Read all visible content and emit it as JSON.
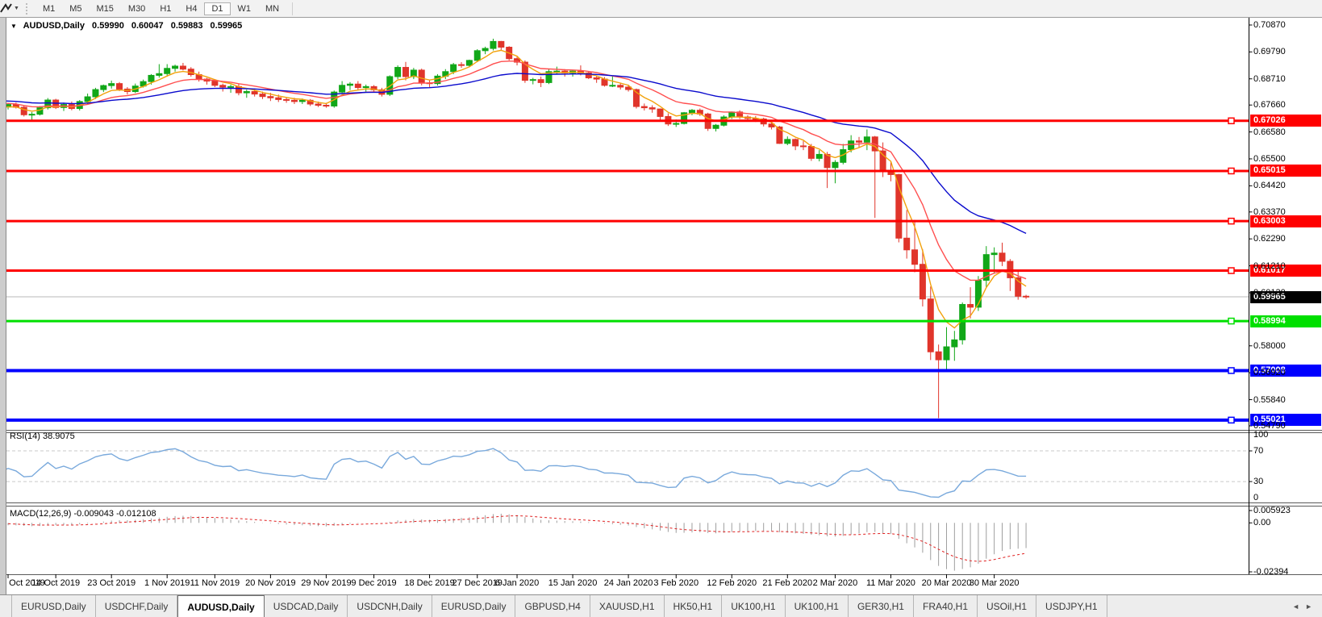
{
  "toolbar": {
    "timeframes": [
      "M1",
      "M5",
      "M15",
      "M30",
      "H1",
      "H4",
      "D1",
      "W1",
      "MN"
    ],
    "active": "D1"
  },
  "icons": {
    "dropdown_caret": "▼",
    "title_caret": "▼",
    "scroll_left": "◄",
    "scroll_right": "►"
  },
  "chart": {
    "title": {
      "symbol": "AUDUSD,Daily",
      "open": "0.59990",
      "high": "0.60047",
      "low": "0.59883",
      "close": "0.59965"
    }
  },
  "rsi_pane": {
    "label": "RSI(14)",
    "value": "38.9075",
    "level_labels": [
      "100",
      "70",
      "30",
      "0"
    ]
  },
  "macd_pane": {
    "label": "MACD(12,26,9)",
    "macd_value": "-0.009043",
    "signal_value": "-0.012108"
  },
  "tabs": {
    "items": [
      "EURUSD,Daily",
      "USDCHF,Daily",
      "AUDUSD,Daily",
      "USDCAD,Daily",
      "USDCNH,Daily",
      "EURUSD,Daily",
      "GBPUSD,H4",
      "XAUUSD,H1",
      "HK50,H1",
      "UK100,H1",
      "UK100,H1",
      "GER30,H1",
      "FRA40,H1",
      "USOil,H1",
      "USDJPY,H1"
    ],
    "active_index": 2
  },
  "chart_data": {
    "type": "candlestick",
    "symbol": "AUDUSD",
    "timeframe": "Daily",
    "up_color": "#11A718",
    "down_color": "#E0352B",
    "visible_start": 34,
    "candles": [
      [
        0.673,
        0.6742,
        0.6722,
        0.6735
      ],
      [
        0.6735,
        0.6748,
        0.6728,
        0.6742
      ],
      [
        0.6742,
        0.6746,
        0.672,
        0.6728
      ],
      [
        0.6728,
        0.6734,
        0.6706,
        0.6715
      ],
      [
        0.6715,
        0.673,
        0.6708,
        0.6722
      ],
      [
        0.6722,
        0.6745,
        0.6715,
        0.6738
      ],
      [
        0.6738,
        0.676,
        0.673,
        0.6752
      ],
      [
        0.6752,
        0.6775,
        0.6745,
        0.6768
      ],
      [
        0.6768,
        0.679,
        0.676,
        0.6781
      ],
      [
        0.6781,
        0.6802,
        0.6772,
        0.6795
      ],
      [
        0.6795,
        0.6818,
        0.6788,
        0.681
      ],
      [
        0.681,
        0.6833,
        0.6802,
        0.6826
      ],
      [
        0.6826,
        0.6848,
        0.6818,
        0.684
      ],
      [
        0.684,
        0.6862,
        0.6832,
        0.6855
      ],
      [
        0.6855,
        0.6875,
        0.6848,
        0.6868
      ],
      [
        0.6868,
        0.6888,
        0.686,
        0.688
      ],
      [
        0.688,
        0.69,
        0.6872,
        0.689
      ],
      [
        0.689,
        0.6898,
        0.6875,
        0.6885
      ],
      [
        0.6885,
        0.6892,
        0.6862,
        0.6872
      ],
      [
        0.6872,
        0.688,
        0.6848,
        0.6858
      ],
      [
        0.6858,
        0.6866,
        0.6836,
        0.6845
      ],
      [
        0.6845,
        0.6852,
        0.6822,
        0.6832
      ],
      [
        0.6832,
        0.684,
        0.6808,
        0.6818
      ],
      [
        0.6818,
        0.6826,
        0.6795,
        0.6805
      ],
      [
        0.6805,
        0.6815,
        0.6782,
        0.6792
      ],
      [
        0.6792,
        0.68,
        0.677,
        0.678
      ],
      [
        0.678,
        0.679,
        0.6758,
        0.6768
      ],
      [
        0.6768,
        0.6782,
        0.676,
        0.6772
      ],
      [
        0.6772,
        0.6778,
        0.6752,
        0.6762
      ],
      [
        0.6762,
        0.677,
        0.674,
        0.675
      ],
      [
        0.675,
        0.6758,
        0.6732,
        0.6742
      ],
      [
        0.6742,
        0.676,
        0.6736,
        0.6752
      ],
      [
        0.6752,
        0.6762,
        0.6738,
        0.6748
      ],
      [
        0.6748,
        0.6764,
        0.674,
        0.6755
      ],
      [
        0.6758,
        0.6774,
        0.6748,
        0.6768
      ],
      [
        0.6768,
        0.6776,
        0.6752,
        0.6757
      ],
      [
        0.6757,
        0.6762,
        0.672,
        0.6727
      ],
      [
        0.6727,
        0.6738,
        0.6705,
        0.6729
      ],
      [
        0.6729,
        0.6762,
        0.6724,
        0.6755
      ],
      [
        0.6755,
        0.6794,
        0.6748,
        0.6786
      ],
      [
        0.6786,
        0.6791,
        0.675,
        0.6756
      ],
      [
        0.6756,
        0.6776,
        0.6742,
        0.6768
      ],
      [
        0.6768,
        0.678,
        0.6745,
        0.6752
      ],
      [
        0.6752,
        0.6786,
        0.6744,
        0.678
      ],
      [
        0.678,
        0.6812,
        0.677,
        0.6799
      ],
      [
        0.6799,
        0.6835,
        0.679,
        0.6828
      ],
      [
        0.6828,
        0.6848,
        0.6818,
        0.6844
      ],
      [
        0.6844,
        0.6864,
        0.6832,
        0.6852
      ],
      [
        0.6852,
        0.6858,
        0.6822,
        0.683
      ],
      [
        0.683,
        0.6838,
        0.6808,
        0.682
      ],
      [
        0.682,
        0.6852,
        0.6814,
        0.6842
      ],
      [
        0.6842,
        0.6868,
        0.6836,
        0.686
      ],
      [
        0.686,
        0.689,
        0.6848,
        0.6885
      ],
      [
        0.6885,
        0.693,
        0.6876,
        0.6892
      ],
      [
        0.6892,
        0.693,
        0.688,
        0.6913
      ],
      [
        0.6913,
        0.6928,
        0.69,
        0.6922
      ],
      [
        0.6922,
        0.6935,
        0.6905,
        0.691
      ],
      [
        0.691,
        0.6918,
        0.688,
        0.6888
      ],
      [
        0.6888,
        0.69,
        0.686,
        0.687
      ],
      [
        0.687,
        0.6875,
        0.6848,
        0.6862
      ],
      [
        0.6862,
        0.687,
        0.6838,
        0.6845
      ],
      [
        0.6845,
        0.6852,
        0.682,
        0.6838
      ],
      [
        0.6838,
        0.6848,
        0.6815,
        0.684
      ],
      [
        0.684,
        0.685,
        0.6805,
        0.6815
      ],
      [
        0.6815,
        0.6828,
        0.6795,
        0.682
      ],
      [
        0.682,
        0.6832,
        0.68,
        0.681
      ],
      [
        0.681,
        0.682,
        0.679,
        0.68
      ],
      [
        0.68,
        0.6815,
        0.6782,
        0.6795
      ],
      [
        0.6795,
        0.6808,
        0.6778,
        0.6788
      ],
      [
        0.6788,
        0.6798,
        0.6775,
        0.6785
      ],
      [
        0.6785,
        0.6795,
        0.677,
        0.678
      ],
      [
        0.678,
        0.6792,
        0.677,
        0.6785
      ],
      [
        0.6785,
        0.679,
        0.6762,
        0.677
      ],
      [
        0.677,
        0.678,
        0.6758,
        0.6765
      ],
      [
        0.6765,
        0.6775,
        0.6755,
        0.6762
      ],
      [
        0.6762,
        0.6824,
        0.6755,
        0.6818
      ],
      [
        0.6818,
        0.6862,
        0.681,
        0.6845
      ],
      [
        0.6845,
        0.6858,
        0.6826,
        0.685
      ],
      [
        0.685,
        0.6862,
        0.6828,
        0.6836
      ],
      [
        0.6836,
        0.6848,
        0.682,
        0.684
      ],
      [
        0.684,
        0.6846,
        0.6818,
        0.6827
      ],
      [
        0.6827,
        0.6835,
        0.68,
        0.6809
      ],
      [
        0.6809,
        0.6885,
        0.6802,
        0.688
      ],
      [
        0.688,
        0.6925,
        0.687,
        0.6917
      ],
      [
        0.6917,
        0.6939,
        0.6865,
        0.688
      ],
      [
        0.688,
        0.6915,
        0.687,
        0.6906
      ],
      [
        0.6906,
        0.6912,
        0.6845,
        0.6855
      ],
      [
        0.6855,
        0.6868,
        0.6838,
        0.6852
      ],
      [
        0.6852,
        0.689,
        0.6844,
        0.6882
      ],
      [
        0.6882,
        0.691,
        0.687,
        0.69
      ],
      [
        0.69,
        0.6935,
        0.689,
        0.6928
      ],
      [
        0.6928,
        0.6938,
        0.6915,
        0.6925
      ],
      [
        0.6925,
        0.6948,
        0.6918,
        0.6945
      ],
      [
        0.6945,
        0.699,
        0.6938,
        0.6984
      ],
      [
        0.6984,
        0.7,
        0.697,
        0.6993
      ],
      [
        0.6993,
        0.7032,
        0.6985,
        0.7021
      ],
      [
        0.7021,
        0.7023,
        0.6985,
        0.6998
      ],
      [
        0.6998,
        0.7002,
        0.6945,
        0.6952
      ],
      [
        0.6952,
        0.696,
        0.6925,
        0.6938
      ],
      [
        0.6938,
        0.6945,
        0.6855,
        0.6865
      ],
      [
        0.6865,
        0.6875,
        0.6849,
        0.6868
      ],
      [
        0.6868,
        0.688,
        0.6838,
        0.6856
      ],
      [
        0.6856,
        0.6912,
        0.685,
        0.69
      ],
      [
        0.69,
        0.692,
        0.689,
        0.6902
      ],
      [
        0.6902,
        0.691,
        0.688,
        0.6895
      ],
      [
        0.6895,
        0.6905,
        0.688,
        0.6902
      ],
      [
        0.6902,
        0.6925,
        0.6885,
        0.6895
      ],
      [
        0.6895,
        0.69,
        0.687,
        0.6875
      ],
      [
        0.6875,
        0.6885,
        0.6855,
        0.687
      ],
      [
        0.687,
        0.6878,
        0.684,
        0.6845
      ],
      [
        0.6845,
        0.688,
        0.6838,
        0.6845
      ],
      [
        0.6845,
        0.6855,
        0.6828,
        0.6838
      ],
      [
        0.6838,
        0.6848,
        0.682,
        0.6828
      ],
      [
        0.6828,
        0.6832,
        0.6752,
        0.676
      ],
      [
        0.676,
        0.6772,
        0.6744,
        0.6755
      ],
      [
        0.6755,
        0.6765,
        0.6735,
        0.675
      ],
      [
        0.675,
        0.6752,
        0.67,
        0.672
      ],
      [
        0.672,
        0.6733,
        0.6682,
        0.669
      ],
      [
        0.669,
        0.6708,
        0.6678,
        0.6692
      ],
      [
        0.6692,
        0.6738,
        0.6688,
        0.6735
      ],
      [
        0.6735,
        0.675,
        0.6725,
        0.6745
      ],
      [
        0.6745,
        0.6752,
        0.6722,
        0.673
      ],
      [
        0.673,
        0.6735,
        0.6662,
        0.6672
      ],
      [
        0.6672,
        0.669,
        0.666,
        0.6685
      ],
      [
        0.6685,
        0.6725,
        0.668,
        0.6718
      ],
      [
        0.6718,
        0.674,
        0.671,
        0.6738
      ],
      [
        0.6738,
        0.6745,
        0.671,
        0.6718
      ],
      [
        0.6718,
        0.6725,
        0.67,
        0.6712
      ],
      [
        0.6712,
        0.6722,
        0.6698,
        0.671
      ],
      [
        0.671,
        0.6715,
        0.668,
        0.669
      ],
      [
        0.669,
        0.67,
        0.6668,
        0.6678
      ],
      [
        0.6678,
        0.6682,
        0.661,
        0.6612
      ],
      [
        0.6612,
        0.664,
        0.6605,
        0.6628
      ],
      [
        0.6628,
        0.6632,
        0.6585,
        0.6602
      ],
      [
        0.6602,
        0.6622,
        0.6585,
        0.66
      ],
      [
        0.66,
        0.661,
        0.6542,
        0.6552
      ],
      [
        0.6552,
        0.6585,
        0.654,
        0.6568
      ],
      [
        0.6568,
        0.6578,
        0.6433,
        0.6515
      ],
      [
        0.6515,
        0.6545,
        0.6452,
        0.6536
      ],
      [
        0.6536,
        0.661,
        0.6528,
        0.6587
      ],
      [
        0.6587,
        0.6645,
        0.6576,
        0.6622
      ],
      [
        0.6622,
        0.6638,
        0.6595,
        0.6617
      ],
      [
        0.6617,
        0.6668,
        0.6585,
        0.6638
      ],
      [
        0.6638,
        0.6642,
        0.6313,
        0.6582
      ],
      [
        0.6582,
        0.6616,
        0.6477,
        0.6498
      ],
      [
        0.6498,
        0.6542,
        0.646,
        0.6487
      ],
      [
        0.6487,
        0.649,
        0.6215,
        0.6232
      ],
      [
        0.6232,
        0.6345,
        0.615,
        0.6185
      ],
      [
        0.6185,
        0.6305,
        0.6095,
        0.6127
      ],
      [
        0.6127,
        0.6187,
        0.5958,
        0.5988
      ],
      [
        0.5988,
        0.6038,
        0.5743,
        0.5776
      ],
      [
        0.5776,
        0.5805,
        0.551,
        0.5744
      ],
      [
        0.5744,
        0.5875,
        0.57,
        0.5796
      ],
      [
        0.5796,
        0.586,
        0.574,
        0.5824
      ],
      [
        0.5824,
        0.5974,
        0.5805,
        0.5966
      ],
      [
        0.5966,
        0.6035,
        0.591,
        0.5955
      ],
      [
        0.5955,
        0.608,
        0.594,
        0.6063
      ],
      [
        0.6063,
        0.62,
        0.6035,
        0.6166
      ],
      [
        0.6166,
        0.6195,
        0.609,
        0.6172
      ],
      [
        0.6172,
        0.6214,
        0.612,
        0.6139
      ],
      [
        0.6139,
        0.6148,
        0.602,
        0.6073
      ],
      [
        0.6073,
        0.6105,
        0.5985,
        0.5999
      ],
      [
        0.5999,
        0.60047,
        0.59883,
        0.59965
      ]
    ],
    "price_ticks": [
      "0.70870",
      "0.69790",
      "0.68710",
      "0.67660",
      "0.66580",
      "0.65500",
      "0.64420",
      "0.63370",
      "0.62290",
      "0.61210",
      "0.60130",
      "0.58000",
      "0.56920",
      "0.55840",
      "0.54790"
    ],
    "date_ticks": [
      {
        "label": "4 Oct 2019",
        "i": 34
      },
      {
        "label": "14 Oct 2019",
        "i": 40
      },
      {
        "label": "23 Oct 2019",
        "i": 47
      },
      {
        "label": "1 Nov 2019",
        "i": 54
      },
      {
        "label": "11 Nov 2019",
        "i": 60
      },
      {
        "label": "20 Nov 2019",
        "i": 67
      },
      {
        "label": "29 Nov 2019",
        "i": 74
      },
      {
        "label": "9 Dec 2019",
        "i": 80
      },
      {
        "label": "18 Dec 2019",
        "i": 87
      },
      {
        "label": "27 Dec 2019",
        "i": 93
      },
      {
        "label": "6 Jan 2020",
        "i": 98
      },
      {
        "label": "15 Jan 2020",
        "i": 105
      },
      {
        "label": "24 Jan 2020",
        "i": 112
      },
      {
        "label": "3 Feb 2020",
        "i": 118
      },
      {
        "label": "12 Feb 2020",
        "i": 125
      },
      {
        "label": "21 Feb 2020",
        "i": 132
      },
      {
        "label": "2 Mar 2020",
        "i": 138
      },
      {
        "label": "11 Mar 2020",
        "i": 145
      },
      {
        "label": "20 Mar 2020",
        "i": 152
      },
      {
        "label": "30 Mar 2020",
        "i": 158
      }
    ],
    "horizontal_lines": [
      {
        "price": 0.67026,
        "label": "0.67026",
        "color": "#FF0000",
        "width": 3
      },
      {
        "price": 0.65015,
        "label": "0.65015",
        "color": "#FF0000",
        "width": 3
      },
      {
        "price": 0.63003,
        "label": "0.63003",
        "color": "#FF0000",
        "width": 3
      },
      {
        "price": 0.61017,
        "label": "0.61017",
        "color": "#FF0000",
        "width": 3
      },
      {
        "price": 0.58994,
        "label": "0.58994",
        "color": "#00DF00",
        "width": 3
      },
      {
        "price": 0.57008,
        "label": "0.57008",
        "color": "#0000FF",
        "width": 4
      },
      {
        "price": 0.55021,
        "label": "0.55021",
        "color": "#0000FF",
        "width": 4
      }
    ],
    "current_price": {
      "price": 0.59965,
      "label": "0.59965",
      "line_color": "#B9B9B9",
      "bg": "#000000"
    },
    "moving_averages": [
      {
        "type": "ema",
        "period": 5,
        "color": "#F2A20C"
      },
      {
        "type": "ema",
        "period": 13,
        "color": "#FF4F4F"
      },
      {
        "type": "ema",
        "period": 34,
        "color": "#0A0ACD"
      }
    ],
    "rsi": {
      "period": 14,
      "value": "38.9075",
      "levels": [
        70,
        30
      ],
      "color": "#79A9DC",
      "level_color": "#C9C9C9"
    },
    "macd": {
      "fast": 12,
      "slow": 26,
      "signal": 9,
      "macd_value": "-0.009043",
      "signal_value": "-0.012108",
      "axis_labels": [
        "0.005923",
        "0.00",
        "-0.02394"
      ],
      "hist_color": "#9E9E9E",
      "signal_color": "#E02020"
    }
  }
}
